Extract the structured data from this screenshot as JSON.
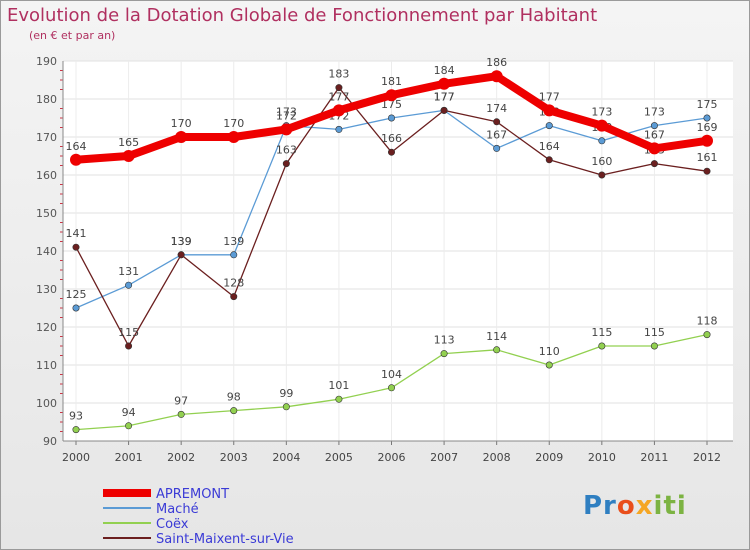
{
  "title": "Evolution de la Dotation Globale de Fonctionnement par Habitant",
  "subtitle": "(en € et par an)",
  "logo_text": "Proxiti",
  "chart_data": {
    "type": "line",
    "x": [
      "2000",
      "2001",
      "2002",
      "2003",
      "2004",
      "2005",
      "2006",
      "2007",
      "2008",
      "2009",
      "2010",
      "2011",
      "2012"
    ],
    "ylim": [
      90,
      190
    ],
    "yticks": [
      90,
      100,
      110,
      120,
      130,
      140,
      150,
      160,
      170,
      180,
      190
    ],
    "grid": true,
    "legend_position": "bottom-left",
    "series": [
      {
        "name": "APREMONT",
        "color": "#ee0000",
        "values": [
          164,
          165,
          170,
          170,
          172,
          177,
          181,
          184,
          186,
          177,
          173,
          167,
          169
        ]
      },
      {
        "name": "Maché",
        "color": "#5b9bd5",
        "values": [
          125,
          131,
          139,
          139,
          173,
          172,
          175,
          177,
          167,
          173,
          169,
          173,
          175
        ]
      },
      {
        "name": "Coëx",
        "color": "#92d050",
        "values": [
          93,
          94,
          97,
          98,
          99,
          101,
          104,
          113,
          114,
          110,
          115,
          115,
          118
        ]
      },
      {
        "name": "Saint-Maixent-sur-Vie",
        "color": "#6b1f1f",
        "values": [
          141,
          115,
          139,
          128,
          163,
          183,
          166,
          177,
          174,
          164,
          160,
          163,
          161
        ]
      }
    ]
  }
}
